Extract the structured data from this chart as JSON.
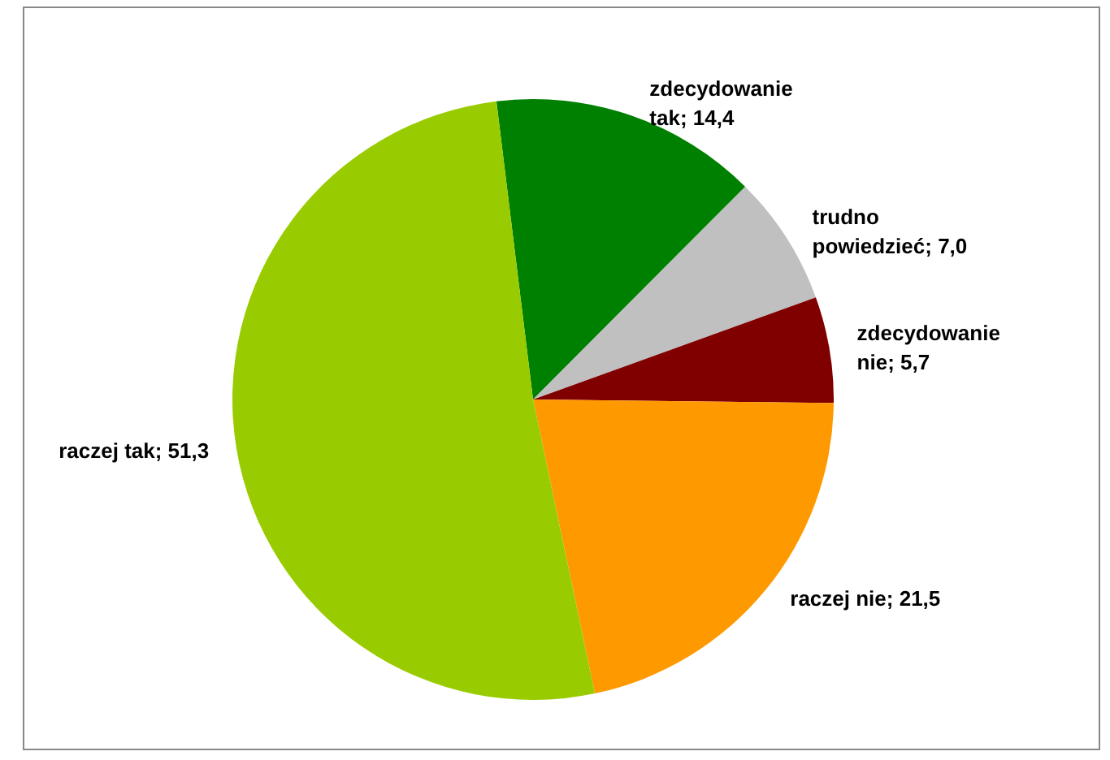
{
  "chart_data": {
    "type": "pie",
    "categories": [
      "zdecydowanie tak",
      "trudno powiedzieć",
      "zdecydowanie nie",
      "raczej nie",
      "raczej tak"
    ],
    "values": [
      14.4,
      7.0,
      5.7,
      21.5,
      51.3
    ],
    "value_labels": [
      "14,4",
      "7,0",
      "5,7",
      "21,5",
      "51,3"
    ],
    "colors": [
      "#008000",
      "#c0c0c0",
      "#800000",
      "#ff9900",
      "#99cc00"
    ],
    "legend": false
  }
}
